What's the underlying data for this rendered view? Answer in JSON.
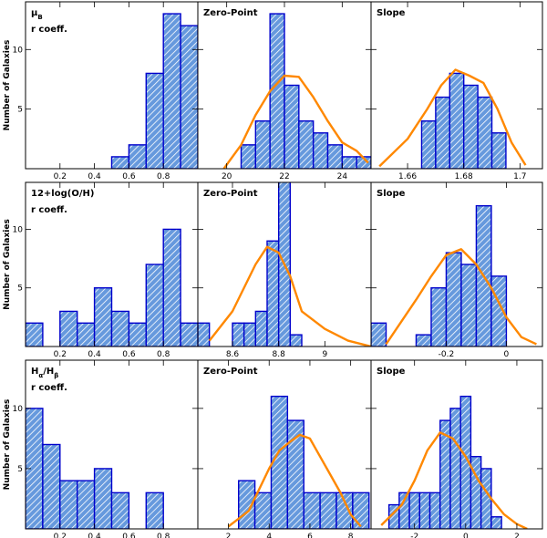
{
  "figure": {
    "ylabel": "Number of Galaxies",
    "colors": {
      "bar_edge": "#0000cc",
      "bar_fill": "#6699dd",
      "fit_curve": "#ff8800",
      "axis": "#000000"
    }
  },
  "chart_data": [
    {
      "type": "bar",
      "row": 0,
      "col": 0,
      "title": "μ_B",
      "title_main": "μ",
      "title_sub": "B",
      "subtitle": "r coeff.",
      "xlim": [
        0,
        1.0
      ],
      "ylim": [
        0,
        14
      ],
      "xticks": [
        0.2,
        0.4,
        0.6,
        0.8
      ],
      "xtick_labels": [
        "0.2",
        "0.4",
        "0.6",
        "0.8"
      ],
      "yticks": [
        5,
        10
      ],
      "ytick_labels": [
        "5",
        "10"
      ],
      "bin_edges": [
        0.5,
        0.6,
        0.7,
        0.8,
        0.9,
        1.0
      ],
      "counts": [
        1,
        2,
        8,
        13,
        12
      ],
      "curve": null
    },
    {
      "type": "bar",
      "row": 0,
      "col": 1,
      "title": "Zero-Point",
      "xlim": [
        19.0,
        25.0
      ],
      "ylim": [
        0,
        14
      ],
      "xticks": [
        20,
        22,
        24
      ],
      "xtick_labels": [
        "20",
        "22",
        "24"
      ],
      "yticks": [
        5,
        10
      ],
      "ytick_labels": [],
      "bin_edges": [
        20.5,
        21.0,
        21.5,
        22.0,
        22.5,
        23.0,
        23.5,
        24.0,
        24.5,
        25.0
      ],
      "counts": [
        2,
        4,
        13,
        7,
        4,
        3,
        2,
        1,
        1
      ],
      "curve": {
        "x": [
          19.9,
          20.5,
          21.0,
          21.5,
          22.0,
          22.5,
          23.0,
          23.5,
          24.0,
          24.5,
          24.9
        ],
        "y": [
          0.0,
          2.0,
          4.5,
          6.5,
          7.8,
          7.7,
          6.0,
          4.0,
          2.2,
          1.5,
          0.5
        ]
      }
    },
    {
      "type": "bar",
      "row": 0,
      "col": 2,
      "title": "Slope",
      "xlim": [
        1.647,
        1.708
      ],
      "ylim": [
        0,
        14
      ],
      "xticks": [
        1.66,
        1.68,
        1.7
      ],
      "xtick_labels": [
        "1.66",
        "1.68",
        "1.7"
      ],
      "yticks": [
        5,
        10
      ],
      "ytick_labels": [],
      "bin_edges": [
        1.665,
        1.67,
        1.675,
        1.68,
        1.685,
        1.69,
        1.695
      ],
      "counts": [
        4,
        6,
        8,
        7,
        6,
        3
      ],
      "curve": {
        "x": [
          1.65,
          1.66,
          1.667,
          1.672,
          1.677,
          1.682,
          1.687,
          1.692,
          1.697,
          1.702
        ],
        "y": [
          0.2,
          2.5,
          5.0,
          7.0,
          8.3,
          7.8,
          7.2,
          5.0,
          2.2,
          0.3
        ]
      }
    },
    {
      "type": "bar",
      "row": 1,
      "col": 0,
      "title": "12+log(O/H)",
      "subtitle": "r coeff.",
      "xlim": [
        0,
        1.0
      ],
      "ylim": [
        0,
        14
      ],
      "xticks": [
        0.2,
        0.4,
        0.6,
        0.8
      ],
      "xtick_labels": [
        "0.2",
        "0.4",
        "0.6",
        "0.8"
      ],
      "yticks": [
        5,
        10
      ],
      "ytick_labels": [
        "5",
        "10"
      ],
      "bin_edges": [
        0.0,
        0.1,
        0.2,
        0.3,
        0.4,
        0.5,
        0.6,
        0.7,
        0.8,
        0.9,
        1.0
      ],
      "counts": [
        2,
        0,
        3,
        2,
        5,
        3,
        2,
        7,
        10,
        2
      ],
      "curve": null
    },
    {
      "type": "bar",
      "row": 1,
      "col": 1,
      "title": "Zero-Point",
      "xlim": [
        8.45,
        9.2
      ],
      "ylim": [
        0,
        14
      ],
      "xticks": [
        8.6,
        8.8,
        9.0
      ],
      "xtick_labels": [
        "8.6",
        "8.8",
        "9"
      ],
      "yticks": [
        5,
        10
      ],
      "ytick_labels": [],
      "bin_edges": [
        8.45,
        8.5,
        8.55,
        8.6,
        8.65,
        8.7,
        8.75,
        8.8,
        8.85,
        8.9,
        8.95
      ],
      "counts": [
        2,
        0,
        0,
        2,
        2,
        3,
        9,
        15,
        1,
        0
      ],
      "curve": {
        "x": [
          8.5,
          8.6,
          8.7,
          8.75,
          8.8,
          8.85,
          8.9,
          9.0,
          9.1,
          9.2
        ],
        "y": [
          0.5,
          3.0,
          7.0,
          8.5,
          8.0,
          6.0,
          3.0,
          1.5,
          0.5,
          0.0
        ]
      }
    },
    {
      "type": "bar",
      "row": 1,
      "col": 2,
      "title": "Slope",
      "xlim": [
        -0.45,
        0.12
      ],
      "ylim": [
        0,
        14
      ],
      "xticks": [
        -0.2,
        0.0
      ],
      "xtick_labels": [
        "-0.2",
        "0"
      ],
      "yticks": [
        5,
        10
      ],
      "ytick_labels": [],
      "bin_edges": [
        -0.45,
        -0.4,
        -0.35,
        -0.3,
        -0.25,
        -0.2,
        -0.15,
        -0.1,
        -0.05,
        0.0
      ],
      "counts": [
        2,
        0,
        0,
        1,
        5,
        8,
        7,
        12,
        6
      ],
      "curve": {
        "x": [
          -0.4,
          -0.3,
          -0.25,
          -0.2,
          -0.15,
          -0.1,
          -0.05,
          0.0,
          0.05,
          0.1
        ],
        "y": [
          0.2,
          4.0,
          6.0,
          7.8,
          8.3,
          7.0,
          5.0,
          2.5,
          0.8,
          0.2
        ]
      }
    },
    {
      "type": "bar",
      "row": 2,
      "col": 0,
      "title": "H_α/H_β",
      "title_parts": [
        "H",
        "α",
        "/H",
        "β"
      ],
      "subtitle": "r coeff.",
      "xlim": [
        0,
        1.0
      ],
      "ylim": [
        0,
        14
      ],
      "xticks": [
        0.2,
        0.4,
        0.6,
        0.8
      ],
      "xtick_labels": [
        "0.2",
        "0.4",
        "0.6",
        "0.8"
      ],
      "yticks": [
        5,
        10
      ],
      "ytick_labels": [
        "5",
        "10"
      ],
      "bin_edges": [
        0.0,
        0.1,
        0.2,
        0.3,
        0.4,
        0.5,
        0.6,
        0.7,
        0.8
      ],
      "counts": [
        10,
        7,
        4,
        4,
        5,
        3,
        0,
        3
      ],
      "curve": null
    },
    {
      "type": "bar",
      "row": 2,
      "col": 1,
      "title": "Zero-Point",
      "xlim": [
        0.5,
        9.0
      ],
      "ylim": [
        0,
        14
      ],
      "xticks": [
        2,
        4,
        6,
        8
      ],
      "xtick_labels": [
        "2",
        "4",
        "6",
        "8"
      ],
      "yticks": [
        5,
        10
      ],
      "ytick_labels": [],
      "bin_edges": [
        2.5,
        3.3,
        4.1,
        4.9,
        5.7,
        6.5,
        7.3,
        8.1,
        8.9
      ],
      "counts": [
        4,
        3,
        11,
        9,
        3,
        3,
        3,
        3
      ],
      "curve": {
        "x": [
          2.0,
          3.0,
          4.0,
          4.5,
          5.0,
          5.5,
          6.0,
          6.5,
          7.0,
          7.5,
          8.0,
          8.5
        ],
        "y": [
          0.2,
          1.5,
          5.0,
          6.5,
          7.2,
          7.8,
          7.5,
          6.0,
          4.5,
          3.0,
          1.2,
          0.2
        ]
      }
    },
    {
      "type": "bar",
      "row": 2,
      "col": 2,
      "title": "Slope",
      "xlim": [
        -3.7,
        3.0
      ],
      "ylim": [
        0,
        14
      ],
      "xticks": [
        -2,
        0,
        2
      ],
      "xtick_labels": [
        "-2",
        "0",
        "2"
      ],
      "yticks": [
        5,
        10
      ],
      "ytick_labels": [],
      "bin_edges": [
        -3.0,
        -2.6,
        -2.2,
        -1.8,
        -1.4,
        -1.0,
        -0.6,
        -0.2,
        0.2,
        0.6,
        1.0,
        1.4
      ],
      "counts": [
        2,
        3,
        3,
        3,
        3,
        9,
        10,
        11,
        6,
        5,
        1
      ],
      "curve": {
        "x": [
          -3.3,
          -2.5,
          -2.0,
          -1.5,
          -1.0,
          -0.5,
          0.0,
          0.5,
          1.0,
          1.5,
          2.0,
          2.4
        ],
        "y": [
          0.3,
          2.0,
          4.0,
          6.5,
          8.0,
          7.5,
          6.0,
          4.0,
          2.5,
          1.2,
          0.4,
          0.0
        ]
      }
    }
  ]
}
